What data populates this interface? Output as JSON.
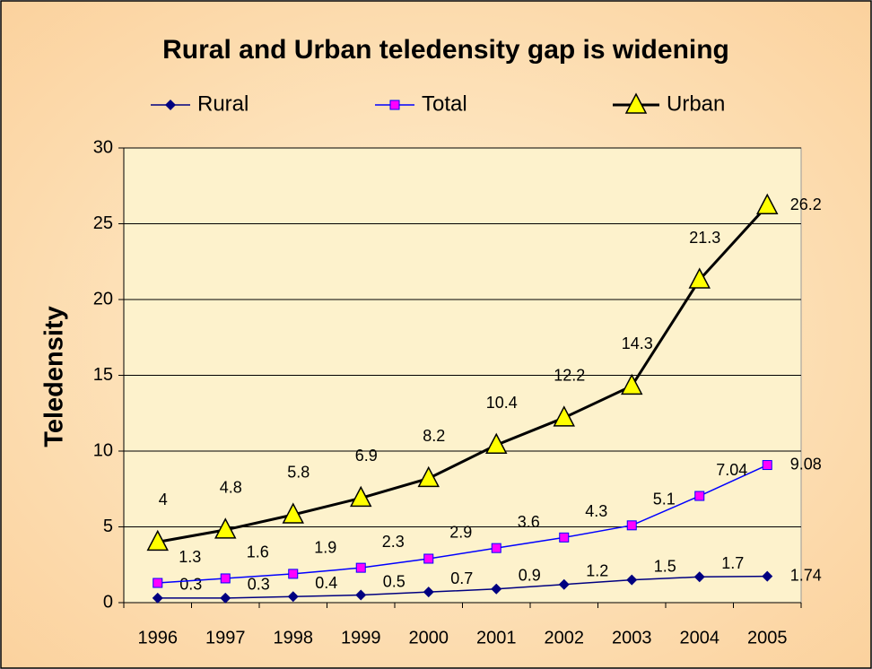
{
  "chart_data": {
    "type": "line",
    "title": "Rural and Urban teledensity gap is widening",
    "y_label": "Teledensity",
    "categories": [
      "1996",
      "1997",
      "1998",
      "1999",
      "2000",
      "2001",
      "2002",
      "2003",
      "2004",
      "2005"
    ],
    "series": [
      {
        "name": "Rural",
        "color": "#000080",
        "marker": "diamond",
        "marker_color": "#000080",
        "values": [
          0.3,
          0.3,
          0.4,
          0.5,
          0.7,
          0.9,
          1.2,
          1.5,
          1.7,
          1.74
        ]
      },
      {
        "name": "Total",
        "color": "#0000ff",
        "marker": "square",
        "marker_color": "#ff00ff",
        "values": [
          1.3,
          1.6,
          1.9,
          2.3,
          2.9,
          3.6,
          4.3,
          5.1,
          7.04,
          9.08
        ]
      },
      {
        "name": "Urban",
        "color": "#000000",
        "marker": "triangle",
        "marker_color": "#ffff00",
        "values": [
          4,
          4.8,
          5.8,
          6.9,
          8.2,
          10.4,
          12.2,
          14.3,
          21.3,
          26.2
        ]
      }
    ],
    "ylim": [
      0,
      30
    ],
    "yticks": [
      0,
      5,
      10,
      15,
      20,
      25,
      30
    ],
    "grid": true,
    "legend": "top"
  }
}
